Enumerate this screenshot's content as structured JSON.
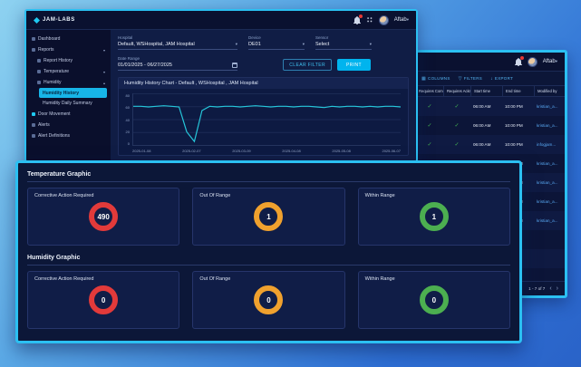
{
  "theme": {
    "accent": "#2bc0f2",
    "window_bg": "#0c1638",
    "active_item_bg": "#17b5e8",
    "line_red": "#e23a3a",
    "line_amber": "#f0a12e",
    "line_green": "#4caf50"
  },
  "icons": {
    "chevron_down": "▾",
    "chevron_up": "▴",
    "check": "✓",
    "arrow_prev": "‹",
    "arrow_next": "›",
    "columns_glyph": "▦",
    "filter_glyph": "▽",
    "export_glyph": "↓"
  },
  "main_window": {
    "brand": "JAM-LABS",
    "topbar": {
      "user_name": "Aftab"
    },
    "sidebar": {
      "items": [
        {
          "label": "Dashboard"
        },
        {
          "label": "Reports"
        },
        {
          "label": "Report History"
        },
        {
          "label": "Temperature"
        },
        {
          "label": "Humidity"
        },
        {
          "label": "Humidity History",
          "active": true
        },
        {
          "label": "Humidity Daily Summary"
        },
        {
          "label": "Door Movement"
        },
        {
          "label": "Alerts"
        },
        {
          "label": "Alert Definitions"
        }
      ]
    },
    "filters": {
      "hospital": {
        "label": "Hospital",
        "value": "Default, WSHospital, JAM Hospital"
      },
      "device": {
        "label": "Device",
        "value": "DE01"
      },
      "sensor": {
        "label": "Sensor",
        "value": "Select"
      },
      "date_range": {
        "label": "Date Range",
        "value": "01/01/2025 - 06/27/2025"
      },
      "clear_button": "CLEAR FILTER",
      "print_button": "PRINT"
    },
    "chart_title": "Humidity History Chart - Default , WSHospital , JAM Hospital"
  },
  "back_window": {
    "topbar": {
      "user_name": "Aftab"
    },
    "toolbar": {
      "columns": "COLUMNS",
      "filters": "FILTERS",
      "export": "EXPORT"
    },
    "table": {
      "headers": [
        "Requires Comment",
        "Requires Acknowl...",
        "Start time",
        "End time",
        "Modified by"
      ],
      "rows": [
        {
          "check1": "✓",
          "check2": "✓",
          "start": "06:00 AM",
          "end": "10:00 PM",
          "user": "kristian_a..."
        },
        {
          "check1": "✓",
          "check2": "✓",
          "start": "06:00 AM",
          "end": "10:00 PM",
          "user": "kristian_a..."
        },
        {
          "check1": "✓",
          "check2": "✓",
          "start": "06:00 AM",
          "end": "10:00 PM",
          "user": "infogjam..."
        },
        {
          "check1": "✓",
          "check2": "✓",
          "start": "06:00 AM",
          "end": "10:00 PM",
          "user": "kristian_a..."
        },
        {
          "check1": "✓",
          "check2": "✓",
          "start": "06:00 AM",
          "end": "10:00 PM",
          "user": "kristian_a..."
        },
        {
          "check1": "✓",
          "check2": "✓",
          "start": "09:11 AM",
          "end": "10:00 PM",
          "user": "kristian_a..."
        },
        {
          "check1": "✓",
          "check2": "✓",
          "start": "09:12 AM",
          "end": "10:00 PM",
          "user": "kristian_a..."
        }
      ]
    },
    "pagination": "1 - 7 of 7"
  },
  "stats": {
    "sections": [
      {
        "title": "Temperature Graphic",
        "cards": [
          {
            "label": "Corrective Action Required",
            "value": "490",
            "color": "#e23a3a"
          },
          {
            "label": "Out Of Range",
            "value": "1",
            "color": "#f0a12e"
          },
          {
            "label": "Within Range",
            "value": "1",
            "color": "#4caf50"
          }
        ]
      },
      {
        "title": "Humidity Graphic",
        "cards": [
          {
            "label": "Corrective Action Required",
            "value": "0",
            "color": "#e23a3a"
          },
          {
            "label": "Out Of Range",
            "value": "0",
            "color": "#f0a12e"
          },
          {
            "label": "Within Range",
            "value": "0",
            "color": "#4caf50"
          }
        ]
      }
    ]
  },
  "chart_data": {
    "type": "line",
    "title": "Humidity History Chart - Default , WSHospital , JAM Hospital",
    "xlabel": "",
    "ylabel": "",
    "x_tick_labels": [
      "2025-01-08",
      "2025-02-07",
      "2025-03-09",
      "2025-04-08",
      "2025-05-08",
      "2025-06-07"
    ],
    "y_ticks": [
      0,
      20,
      40,
      60,
      80
    ],
    "ylim": [
      0,
      80
    ],
    "grid": true,
    "legend": "none",
    "line_color": "#26c6da",
    "series": [
      {
        "name": "Humidity",
        "values": [
          62,
          62,
          61,
          62,
          63,
          62,
          61,
          20,
          4,
          55,
          62,
          61,
          62,
          62,
          61,
          62,
          63,
          62,
          61,
          62,
          62,
          61,
          62,
          62,
          61,
          60,
          62,
          61,
          62,
          62,
          61,
          62,
          61,
          62,
          62,
          61
        ]
      }
    ]
  }
}
